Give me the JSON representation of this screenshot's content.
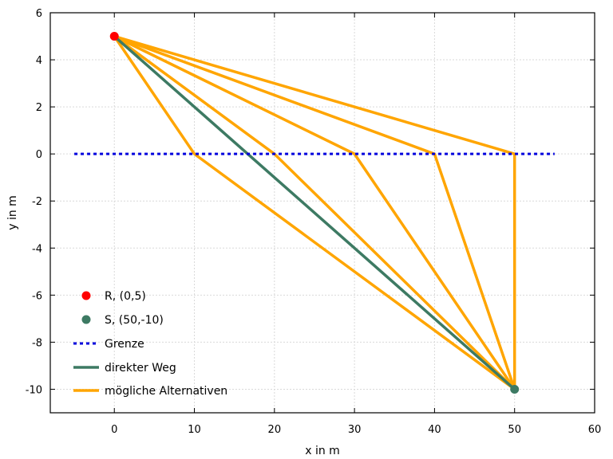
{
  "chart_data": {
    "type": "line",
    "xlabel": "x in m",
    "ylabel": "y in m",
    "xlim": [
      -8,
      60
    ],
    "ylim": [
      -11,
      6
    ],
    "xticks": [
      0,
      10,
      20,
      30,
      40,
      50,
      60
    ],
    "yticks": [
      -10,
      -8,
      -6,
      -4,
      -2,
      0,
      2,
      4,
      6
    ],
    "grid": true,
    "legend_position": "bottom-left",
    "points": [
      {
        "name": "R, (0,5)",
        "x": 0,
        "y": 5,
        "color": "#ff0000"
      },
      {
        "name": "S, (50,-10)",
        "x": 50,
        "y": -10,
        "color": "#3d7a63"
      }
    ],
    "boundary": {
      "name": "Grenze",
      "color": "#0000dd",
      "x": [
        -5,
        55
      ],
      "y": [
        0,
        0
      ]
    },
    "direct_path": {
      "name": "direkter Weg",
      "color": "#3d7a63",
      "x": [
        0,
        50
      ],
      "y": [
        5,
        -10
      ]
    },
    "alternatives": {
      "name": "mögliche Alternativen",
      "color": "#ffa500",
      "paths": [
        {
          "x": [
            0,
            10,
            50
          ],
          "y": [
            5,
            0,
            -10
          ]
        },
        {
          "x": [
            0,
            20,
            50
          ],
          "y": [
            5,
            0,
            -10
          ]
        },
        {
          "x": [
            0,
            30,
            50
          ],
          "y": [
            5,
            0,
            -10
          ]
        },
        {
          "x": [
            0,
            40,
            50
          ],
          "y": [
            5,
            0,
            -10
          ]
        },
        {
          "x": [
            0,
            50,
            50
          ],
          "y": [
            5,
            0,
            -10
          ]
        }
      ]
    }
  }
}
